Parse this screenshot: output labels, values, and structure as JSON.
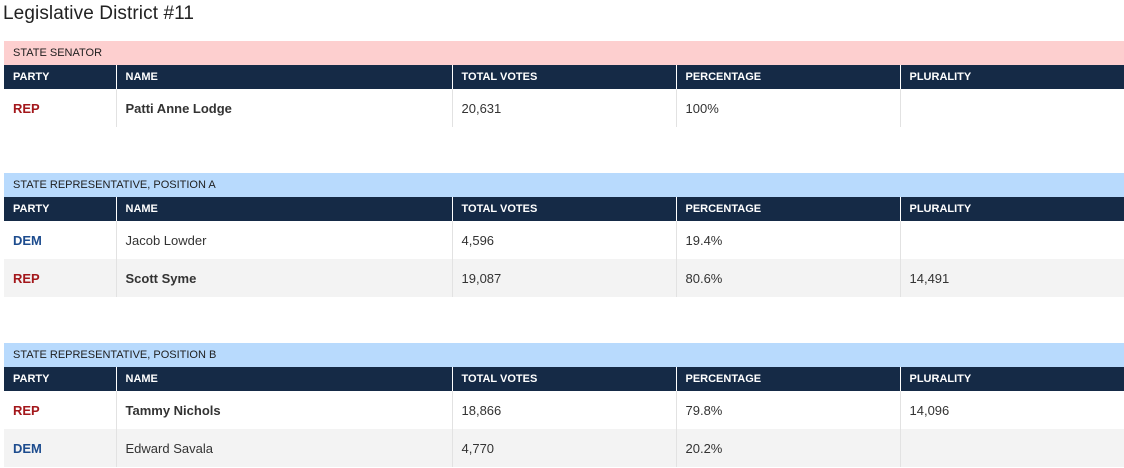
{
  "page_title": "Legislative District #11",
  "column_headers": [
    "PARTY",
    "NAME",
    "TOTAL VOTES",
    "PERCENTAGE",
    "PLURALITY"
  ],
  "races": [
    {
      "title": "STATE SENATOR",
      "header_color": "#fdcfcf",
      "rows": [
        {
          "party": "REP",
          "name": "Patti Anne Lodge",
          "total_votes": "20,631",
          "percentage": "100%",
          "plurality": "",
          "winner": true
        }
      ]
    },
    {
      "title": "STATE REPRESENTATIVE, POSITION A",
      "header_color": "#b8dafd",
      "rows": [
        {
          "party": "DEM",
          "name": "Jacob Lowder",
          "total_votes": "4,596",
          "percentage": "19.4%",
          "plurality": "",
          "winner": false
        },
        {
          "party": "REP",
          "name": "Scott Syme",
          "total_votes": "19,087",
          "percentage": "80.6%",
          "plurality": "14,491",
          "winner": true
        }
      ]
    },
    {
      "title": "STATE REPRESENTATIVE, POSITION B",
      "header_color": "#b8dafd",
      "rows": [
        {
          "party": "REP",
          "name": "Tammy Nichols",
          "total_votes": "18,866",
          "percentage": "79.8%",
          "plurality": "14,096",
          "winner": true
        },
        {
          "party": "DEM",
          "name": "Edward Savala",
          "total_votes": "4,770",
          "percentage": "20.2%",
          "plurality": "",
          "winner": false
        }
      ]
    }
  ],
  "colors": {
    "rep_party_text": "#a3171b",
    "dem_party_text": "#1d4c8e",
    "table_header_bg": "#152a46",
    "alt_row_bg": "#f3f3f3"
  }
}
